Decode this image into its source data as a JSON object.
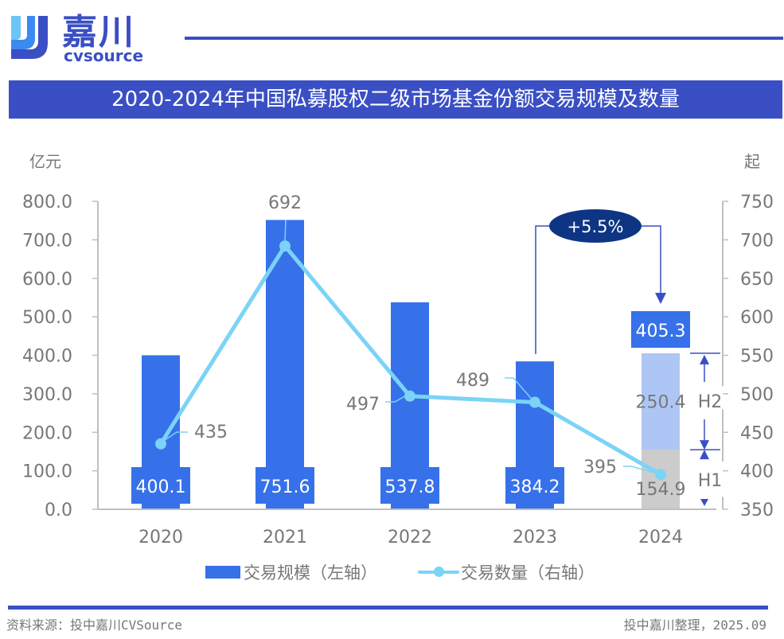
{
  "brand": {
    "name_cn": "嘉川",
    "name_en": "cvsource"
  },
  "colors": {
    "brand_blue": "#3A4FC4",
    "bar_blue": "#3671EA",
    "line_cyan": "#7BD3F7",
    "h2_light_blue": "#ADC6F5",
    "h1_gray": "#CCCCCC",
    "growth_badge": "#0E3584"
  },
  "footer": {
    "source": "资料来源：投中嘉川CVSource",
    "note": "投中嘉川整理，2025.09"
  },
  "chart_data": {
    "type": "bar",
    "title": "2020-2024年中国私募股权二级市场基金份额交易规模及数量",
    "categories": [
      "2020",
      "2021",
      "2022",
      "2023",
      "2024"
    ],
    "ylabel": "亿元",
    "y2label": "起",
    "ylim": [
      0,
      800
    ],
    "y2lim": [
      350,
      750
    ],
    "yticks": [
      "0.0",
      "100.0",
      "200.0",
      "300.0",
      "400.0",
      "500.0",
      "600.0",
      "700.0",
      "800.0"
    ],
    "y2ticks": [
      "350",
      "400",
      "450",
      "500",
      "550",
      "600",
      "650",
      "700",
      "750"
    ],
    "grid": false,
    "legend_position": "bottom",
    "series": [
      {
        "name": "交易规模（左轴）",
        "type": "bar",
        "axis": "left",
        "values": [
          400.1,
          751.6,
          537.8,
          384.2,
          405.3
        ],
        "labels": [
          "400.1",
          "751.6",
          "537.8",
          "384.2",
          "405.3"
        ]
      },
      {
        "name": "交易数量（右轴）",
        "type": "line",
        "axis": "right",
        "values": [
          435,
          692,
          497,
          489,
          395
        ],
        "labels": [
          "435",
          "692",
          "497",
          "489",
          "395"
        ]
      }
    ],
    "breakdown_2024": {
      "H1": 154.9,
      "H2": 250.4,
      "H1_label": "H1",
      "H2_label": "H2",
      "H1_value_label": "154.9",
      "H2_value_label": "250.4"
    },
    "annotation": {
      "text": "+5.5%",
      "from": "2023",
      "to": "2024"
    }
  }
}
